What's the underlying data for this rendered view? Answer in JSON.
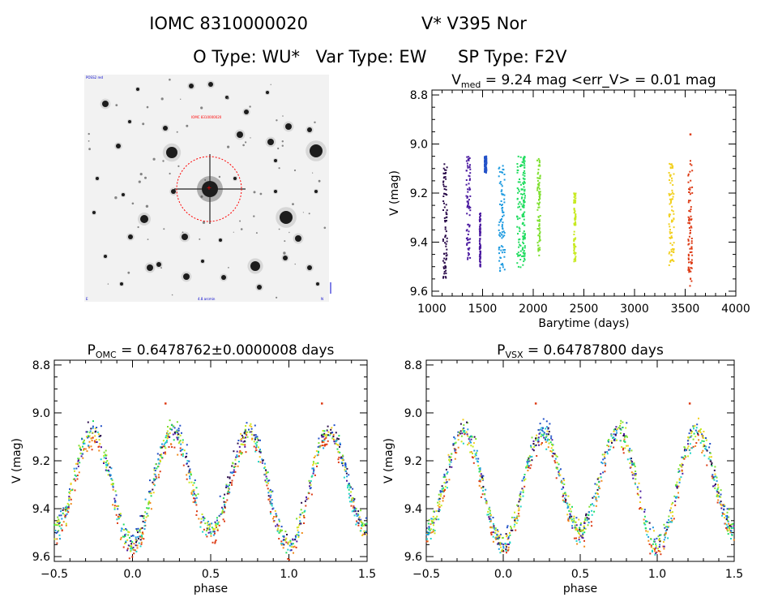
{
  "header": {
    "line1_id": "IOMC 8310000020",
    "line1_name": "V* V395 Nor",
    "line2_otype": "O Type: WU*",
    "line2_vartype": "Var Type: EW",
    "line2_sptype": "SP Type: F2V"
  },
  "finder": {
    "top_left_label": "POSS2 red",
    "target_label": "IOMC 8310000020",
    "scale_label": "4.8 arcmin",
    "corner_bl": "E",
    "corner_br": "N"
  },
  "colors": {
    "series": [
      "#2a0a4a",
      "#4b1aa0",
      "#2352c8",
      "#1f9be0",
      "#20d4c8",
      "#22dd60",
      "#7ee030",
      "#c7ea20",
      "#f2d020",
      "#f08a1a",
      "#dd3a14"
    ],
    "target_circle": "#ff0000",
    "axes": "#000000"
  },
  "chart_data": [
    {
      "id": "timeseries",
      "type": "scatter",
      "title_main": "V",
      "title_sub": "med",
      "title_rest": " = 9.24 mag <err_V> = 0.01 mag",
      "xlabel": "Barytime (days)",
      "ylabel": "V (mag)",
      "xlim": [
        1000,
        4000
      ],
      "ylim": [
        9.62,
        8.78
      ],
      "xticks": [
        "1000",
        "1500",
        "2000",
        "2500",
        "3000",
        "3500",
        "4000"
      ],
      "yticks": [
        "8.8",
        "9.0",
        "9.2",
        "9.4",
        "9.6"
      ],
      "grid": false,
      "segments": [
        {
          "x": [
            1110,
            1150
          ],
          "y": [
            9.08,
            9.55
          ],
          "color": 0
        },
        {
          "x": [
            1340,
            1380
          ],
          "y": [
            9.05,
            9.48
          ],
          "color": 1
        },
        {
          "x": [
            1470,
            1480
          ],
          "y": [
            9.28,
            9.5
          ],
          "color": 1
        },
        {
          "x": [
            1520,
            1540
          ],
          "y": [
            9.05,
            9.12
          ],
          "color": 2
        },
        {
          "x": [
            1660,
            1720
          ],
          "y": [
            9.08,
            9.53
          ],
          "color": 3
        },
        {
          "x": [
            1840,
            1900
          ],
          "y": [
            9.05,
            9.52
          ],
          "color": 5
        },
        {
          "x": [
            1900,
            1920
          ],
          "y": [
            9.05,
            9.48
          ],
          "color": 5
        },
        {
          "x": [
            2040,
            2070
          ],
          "y": [
            9.06,
            9.47
          ],
          "color": 6
        },
        {
          "x": [
            2400,
            2420
          ],
          "y": [
            9.2,
            9.48
          ],
          "color": 7
        },
        {
          "x": [
            3340,
            3390
          ],
          "y": [
            9.08,
            9.5
          ],
          "color": 8
        },
        {
          "x": [
            3530,
            3570
          ],
          "y": [
            9.06,
            9.58
          ],
          "color": 10
        }
      ],
      "outlier": {
        "x": 3550,
        "y": 8.96
      }
    },
    {
      "id": "phase_omc",
      "type": "scatter",
      "title_main": "P",
      "title_sub": "OMC",
      "title_rest": " = 0.6478762±0.0000008 days",
      "xlabel": "phase",
      "ylabel": "V (mag)",
      "xlim": [
        -0.5,
        1.5
      ],
      "ylim": [
        9.62,
        8.78
      ],
      "xticks": [
        "−0.5",
        "0.0",
        "0.5",
        "1.0",
        "1.5"
      ],
      "yticks": [
        "8.8",
        "9.0",
        "9.2",
        "9.4",
        "9.6"
      ],
      "grid": false,
      "light_curve": {
        "mean": 9.29,
        "amplitude": 0.22,
        "secondary_depth": 0.03,
        "scatter": 0.04
      },
      "outliers": [
        {
          "x": 0.21,
          "y": 8.96
        },
        {
          "x": 1.21,
          "y": 8.96
        }
      ]
    },
    {
      "id": "phase_vsx",
      "type": "scatter",
      "title_main": "P",
      "title_sub": "VSX",
      "title_rest": " = 0.64787800 days",
      "xlabel": "phase",
      "ylabel": "V (mag)",
      "xlim": [
        -0.5,
        1.5
      ],
      "ylim": [
        9.62,
        8.78
      ],
      "xticks": [
        "−0.5",
        "0.0",
        "0.5",
        "1.0",
        "1.5"
      ],
      "yticks": [
        "8.8",
        "9.0",
        "9.2",
        "9.4",
        "9.6"
      ],
      "grid": false,
      "light_curve": {
        "mean": 9.29,
        "amplitude": 0.22,
        "secondary_depth": 0.03,
        "scatter": 0.04
      },
      "outliers": [
        {
          "x": 0.21,
          "y": 8.96
        },
        {
          "x": 1.21,
          "y": 8.96
        }
      ]
    }
  ]
}
